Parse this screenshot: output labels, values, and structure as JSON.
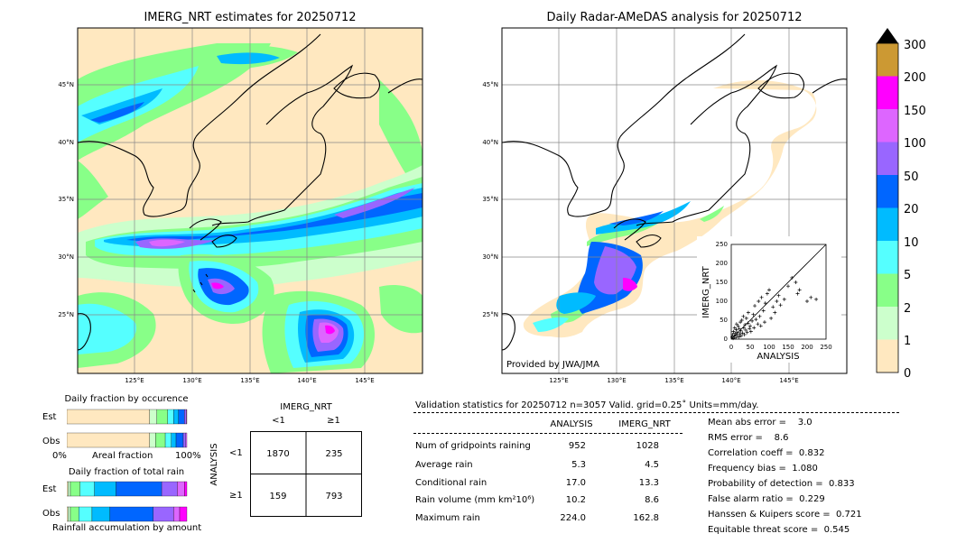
{
  "left_map": {
    "title": "IMERG_NRT estimates for 20250712",
    "lat_labels": [
      "45°N",
      "40°N",
      "35°N",
      "30°N",
      "25°N"
    ],
    "lon_labels": [
      "125°E",
      "130°E",
      "135°E",
      "140°E",
      "145°E"
    ]
  },
  "right_map": {
    "title": "Daily Radar-AMeDAS analysis for 20250712",
    "lat_labels": [
      "45°N",
      "40°N",
      "35°N",
      "30°N",
      "25°N"
    ],
    "lon_labels": [
      "125°E",
      "130°E",
      "135°E",
      "140°E",
      "145°E"
    ],
    "provider": "Provided by JWA/JMA"
  },
  "colorbar": {
    "ticks": [
      "300",
      "200",
      "150",
      "100",
      "50",
      "20",
      "10",
      "5",
      "2",
      "1",
      "0"
    ],
    "colors": [
      "#cc9933",
      "#ff00ff",
      "#dd66ff",
      "#9966ff",
      "#0066ff",
      "#00bbff",
      "#55ffff",
      "#88ff88",
      "#ccffcc",
      "#ffe8c0"
    ]
  },
  "scatter": {
    "xlabel": "ANALYSIS",
    "ylabel": "IMERG_NRT",
    "xticks": [
      "0",
      "50",
      "100",
      "150",
      "200",
      "250"
    ],
    "yticks": [
      "0",
      "50",
      "100",
      "150",
      "200",
      "250"
    ]
  },
  "occurrence": {
    "title": "Daily fraction by occurence",
    "row_est": "Est",
    "row_obs": "Obs",
    "axis_left": "0%",
    "axis_mid": "Areal fraction",
    "axis_right": "100%"
  },
  "total_rain": {
    "title": "Daily fraction of total rain",
    "row_est": "Est",
    "row_obs": "Obs",
    "footer": "Rainfall accumulation by amount"
  },
  "contingency": {
    "col_title": "IMERG_NRT",
    "col_lt": "<1",
    "col_ge": "≥1",
    "row_title": "ANALYSIS",
    "row_lt": "<1",
    "row_ge": "≥1",
    "c11": "1870",
    "c12": "235",
    "c21": "159",
    "c22": "793"
  },
  "validation": {
    "header": "Validation statistics for 20250712  n=3057 Valid. grid=0.25˚ Units=mm/day.",
    "col_analysis": "ANALYSIS",
    "col_imerg": "IMERG_NRT",
    "rows": [
      {
        "label": "Num of gridpoints raining",
        "a": "952",
        "b": "1028"
      },
      {
        "label": "Average rain",
        "a": "5.3",
        "b": "4.5"
      },
      {
        "label": "Conditional rain",
        "a": "17.0",
        "b": "13.3"
      },
      {
        "label": "Rain volume (mm km²10⁶)",
        "a": "10.2",
        "b": "8.6"
      },
      {
        "label": "Maximum rain",
        "a": "224.0",
        "b": "162.8"
      }
    ],
    "scores": [
      "Mean abs error =    3.0",
      "RMS error =    8.6",
      "Correlation coeff =  0.832",
      "Frequency bias =  1.080",
      "Probability of detection =  0.833",
      "False alarm ratio =  0.229",
      "Hanssen & Kuipers score =  0.721",
      "Equitable threat score =  0.545"
    ]
  },
  "chart_data": [
    {
      "type": "scatter",
      "xlabel": "ANALYSIS",
      "ylabel": "IMERG_NRT",
      "xlim": [
        0,
        250
      ],
      "ylim": [
        0,
        250
      ],
      "x": [
        2,
        4,
        5,
        6,
        8,
        9,
        10,
        12,
        13,
        14,
        15,
        16,
        18,
        20,
        21,
        22,
        24,
        25,
        26,
        28,
        30,
        32,
        33,
        35,
        36,
        38,
        40,
        42,
        44,
        45,
        48,
        50,
        52,
        55,
        58,
        60,
        62,
        65,
        70,
        72,
        75,
        78,
        80,
        85,
        88,
        90,
        95,
        100,
        105,
        110,
        115,
        120,
        125,
        130,
        140,
        150,
        160,
        170,
        175,
        180,
        200,
        210,
        224
      ],
      "y": [
        5,
        12,
        2,
        20,
        8,
        30,
        15,
        4,
        25,
        40,
        10,
        18,
        35,
        6,
        28,
        14,
        45,
        22,
        9,
        50,
        16,
        60,
        30,
        12,
        38,
        24,
        55,
        18,
        42,
        70,
        28,
        35,
        20,
        48,
        65,
        30,
        88,
        52,
        40,
        100,
        60,
        35,
        110,
        75,
        45,
        95,
        120,
        130,
        55,
        85,
        70,
        100,
        115,
        90,
        105,
        140,
        162,
        150,
        120,
        130,
        100,
        110,
        105
      ]
    },
    {
      "type": "bar",
      "title": "Daily fraction by occurence",
      "categories": [
        "Est",
        "Obs"
      ],
      "series": [
        {
          "name": "0-1",
          "values": [
            0.69,
            0.69
          ]
        },
        {
          "name": "1-2",
          "values": [
            0.06,
            0.05
          ]
        },
        {
          "name": "2-5",
          "values": [
            0.09,
            0.08
          ]
        },
        {
          "name": "5-10",
          "values": [
            0.05,
            0.05
          ]
        },
        {
          "name": "10-20",
          "values": [
            0.04,
            0.04
          ]
        },
        {
          "name": "20-50",
          "values": [
            0.05,
            0.06
          ]
        },
        {
          "name": "50-100",
          "values": [
            0.015,
            0.02
          ]
        },
        {
          "name": "100+",
          "values": [
            0.005,
            0.01
          ]
        }
      ]
    },
    {
      "type": "bar",
      "title": "Daily fraction of total rain",
      "categories": [
        "Est",
        "Obs"
      ],
      "series": [
        {
          "name": "0-1",
          "values": [
            0.01,
            0.01
          ]
        },
        {
          "name": "1-2",
          "values": [
            0.02,
            0.02
          ]
        },
        {
          "name": "2-5",
          "values": [
            0.08,
            0.07
          ]
        },
        {
          "name": "5-10",
          "values": [
            0.12,
            0.11
          ]
        },
        {
          "name": "10-20",
          "values": [
            0.18,
            0.15
          ]
        },
        {
          "name": "20-50",
          "values": [
            0.38,
            0.36
          ]
        },
        {
          "name": "50-100",
          "values": [
            0.13,
            0.17
          ]
        },
        {
          "name": "100-150",
          "values": [
            0.06,
            0.05
          ]
        },
        {
          "name": "150+",
          "values": [
            0.02,
            0.06
          ]
        }
      ]
    }
  ]
}
